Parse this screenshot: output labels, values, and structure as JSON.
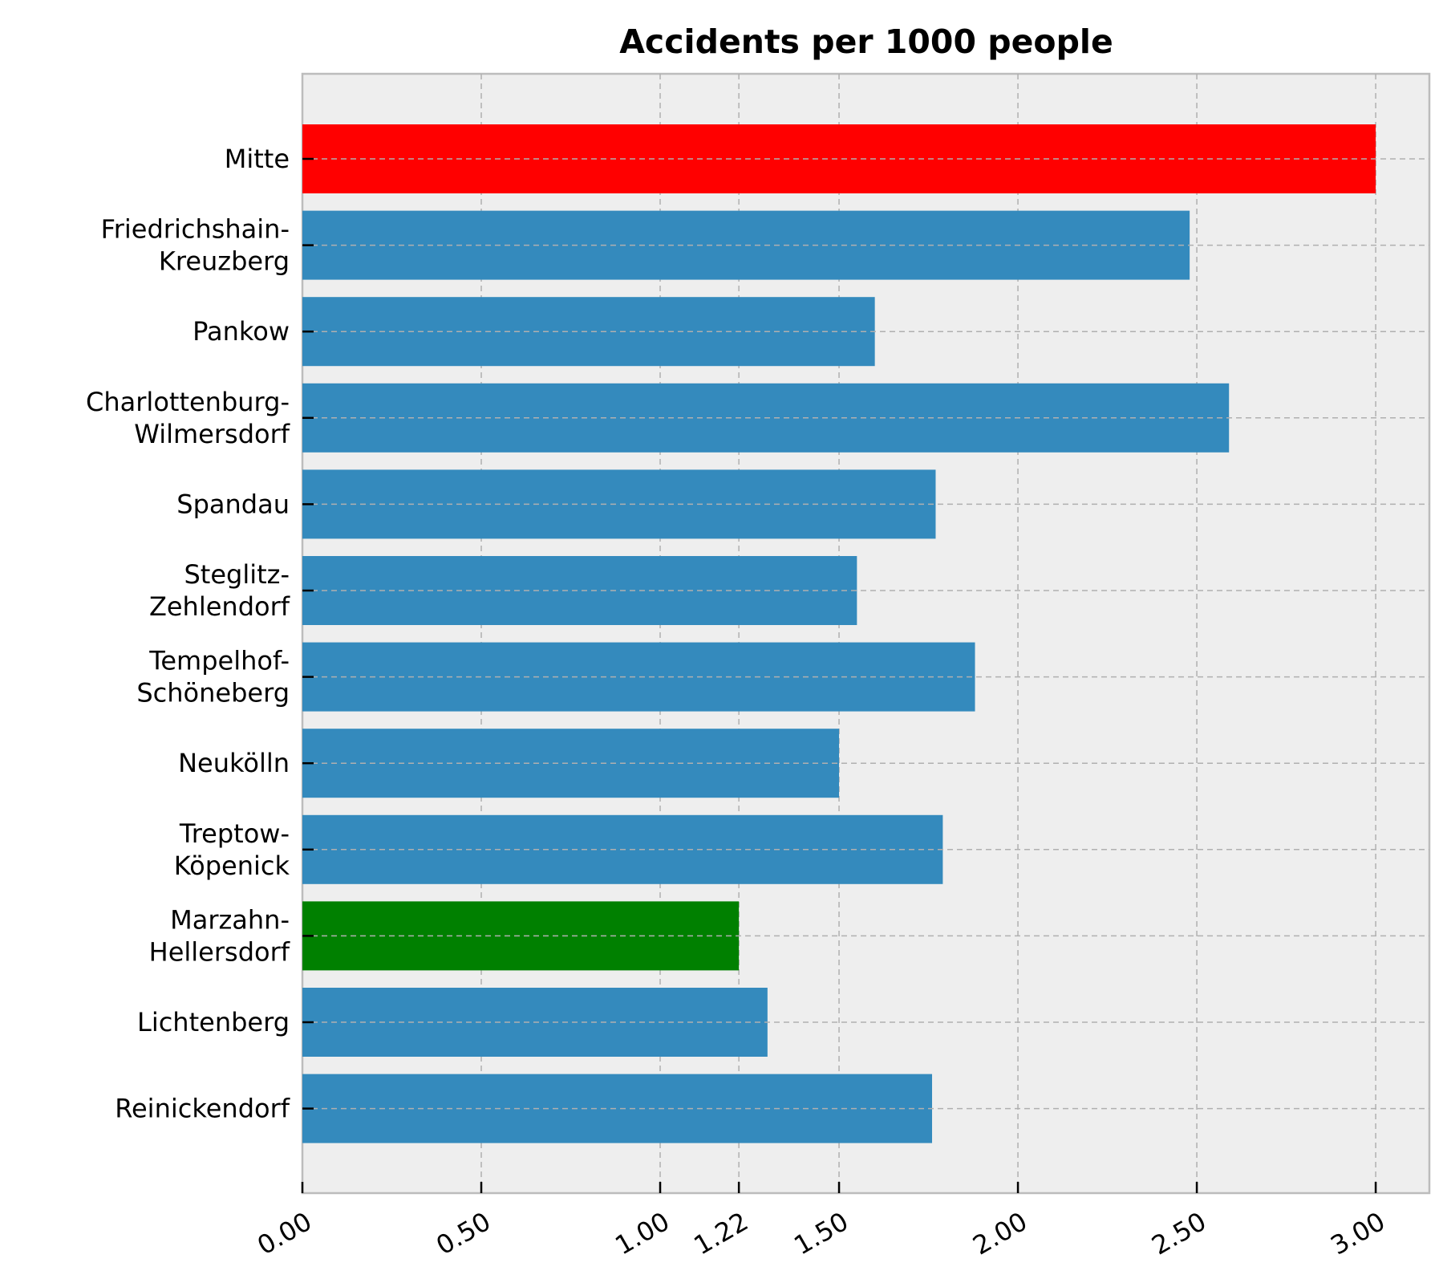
{
  "chart_data": {
    "type": "bar",
    "orientation": "horizontal",
    "title": "Accidents per 1000 people",
    "xlabel": "",
    "ylabel": "",
    "xlim": [
      0,
      3.15
    ],
    "grid": true,
    "categories": [
      [
        "Mitte"
      ],
      [
        "Friedrichshain-",
        "Kreuzberg"
      ],
      [
        "Pankow"
      ],
      [
        "Charlottenburg-",
        "Wilmersdorf"
      ],
      [
        "Spandau"
      ],
      [
        "Steglitz-",
        "Zehlendorf"
      ],
      [
        "Tempelhof-",
        "Schöneberg"
      ],
      [
        "Neukölln"
      ],
      [
        "Treptow-",
        "Köpenick"
      ],
      [
        "Marzahn-",
        "Hellersdorf"
      ],
      [
        "Lichtenberg"
      ],
      [
        "Reinickendorf"
      ]
    ],
    "values": [
      3.0,
      2.48,
      1.6,
      2.59,
      1.77,
      1.55,
      1.88,
      1.5,
      1.79,
      1.22,
      1.3,
      1.76
    ],
    "bar_colors": [
      "#ff0000",
      "#348abd",
      "#348abd",
      "#348abd",
      "#348abd",
      "#348abd",
      "#348abd",
      "#348abd",
      "#348abd",
      "#008000",
      "#348abd",
      "#348abd"
    ],
    "label_colors": [
      "#ff0000",
      "#000000",
      "#000000",
      "#000000",
      "#000000",
      "#000000",
      "#000000",
      "#000000",
      "#000000",
      "#008000",
      "#000000",
      "#000000"
    ],
    "xticks": [
      {
        "value": 0.0,
        "label": "0.00",
        "color": "#000000"
      },
      {
        "value": 0.5,
        "label": "0.50",
        "color": "#000000"
      },
      {
        "value": 1.0,
        "label": "1.00",
        "color": "#000000"
      },
      {
        "value": 1.22,
        "label": "1.22",
        "color": "#008000"
      },
      {
        "value": 1.5,
        "label": "1.50",
        "color": "#000000"
      },
      {
        "value": 2.0,
        "label": "2.00",
        "color": "#000000"
      },
      {
        "value": 2.5,
        "label": "2.50",
        "color": "#000000"
      },
      {
        "value": 3.0,
        "label": "3.00",
        "color": "#ff0000"
      }
    ],
    "background_color": "#eeeeee"
  }
}
